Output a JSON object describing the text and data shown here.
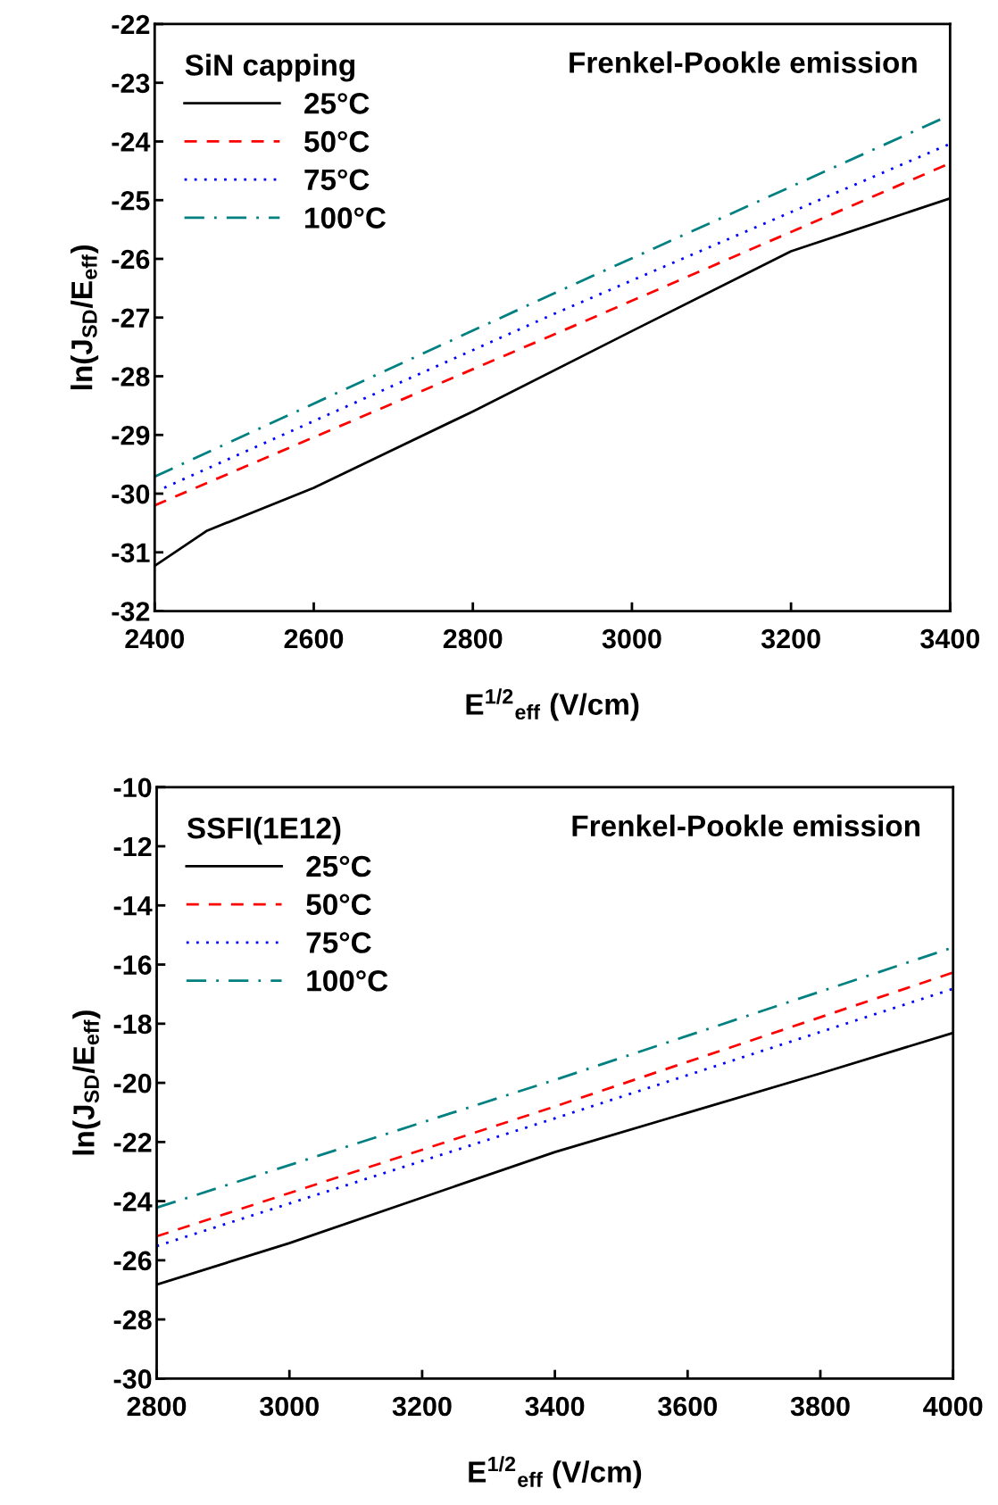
{
  "chart_data": [
    {
      "type": "line",
      "xlabel": "E$^{1/2}$$_{eff}$ (V/cm)",
      "ylabel": "ln(J$_{SD}$/E$_{eff}$)",
      "legend_title": "SiN capping",
      "annotations": [
        "Frenkel-Pookle emission"
      ],
      "xlim": [
        2400,
        3400
      ],
      "xticks": [
        2400,
        2600,
        2800,
        3000,
        3200,
        3400
      ],
      "ylim": [
        -32,
        -22
      ],
      "yticks": [
        -32,
        -31,
        -30,
        -29,
        -28,
        -27,
        -26,
        -25,
        -24,
        -23,
        -22
      ],
      "grid": false,
      "legend": "top left",
      "marker": "none",
      "series": [
        {
          "name": "25°C",
          "color": "#000000",
          "line_style": "solid",
          "x": [
            2400,
            2466,
            2600,
            2800,
            3000,
            3200,
            3400
          ],
          "values": [
            -31.23,
            -30.63,
            -29.9,
            -28.6,
            -27.23,
            -25.87,
            -24.97
          ]
        },
        {
          "name": "50°C",
          "color": "#ff0000",
          "line_style": "dashed",
          "x": [
            2400,
            2900,
            3400
          ],
          "values": [
            -30.2,
            -27.3,
            -24.37
          ]
        },
        {
          "name": "75°C",
          "color": "#0000ff",
          "line_style": "dotted",
          "x": [
            2412,
            2900,
            3400
          ],
          "values": [
            -29.9,
            -26.95,
            -24.04
          ]
        },
        {
          "name": "100°C",
          "color": "#008080",
          "line_style": "dashdot",
          "x": [
            2400,
            2900,
            3400
          ],
          "values": [
            -29.71,
            -26.6,
            -23.55
          ]
        }
      ]
    },
    {
      "type": "line",
      "xlabel": "E$^{1/2}$$_{eff}$ (V/cm)",
      "ylabel": "ln(J$_{SD}$/E$_{eff}$)",
      "legend_title": "SSFI(1E12)",
      "annotations": [
        "Frenkel-Pookle emission"
      ],
      "xlim": [
        2800,
        4000
      ],
      "xticks": [
        2800,
        3000,
        3200,
        3400,
        3600,
        3800,
        4000
      ],
      "ylim": [
        -30,
        -10
      ],
      "yticks": [
        -30,
        -28,
        -26,
        -24,
        -22,
        -20,
        -18,
        -16,
        -14,
        -12,
        -10
      ],
      "grid": false,
      "legend": "top left",
      "marker": "none",
      "series": [
        {
          "name": "25°C",
          "color": "#000000",
          "line_style": "solid",
          "x": [
            2800,
            3000,
            3400,
            3800,
            4000
          ],
          "values": [
            -26.82,
            -25.42,
            -22.34,
            -19.68,
            -18.31
          ]
        },
        {
          "name": "50°C",
          "color": "#ff0000",
          "line_style": "dashed",
          "x": [
            2800,
            3400,
            4000
          ],
          "values": [
            -25.19,
            -20.8,
            -16.27
          ]
        },
        {
          "name": "75°C",
          "color": "#0000ff",
          "line_style": "dotted",
          "x": [
            2800,
            3400,
            4000
          ],
          "values": [
            -25.52,
            -21.2,
            -16.82
          ]
        },
        {
          "name": "100°C",
          "color": "#008080",
          "line_style": "dashdot",
          "x": [
            2800,
            3400,
            4000
          ],
          "values": [
            -24.22,
            -19.9,
            -15.42
          ]
        }
      ]
    }
  ]
}
